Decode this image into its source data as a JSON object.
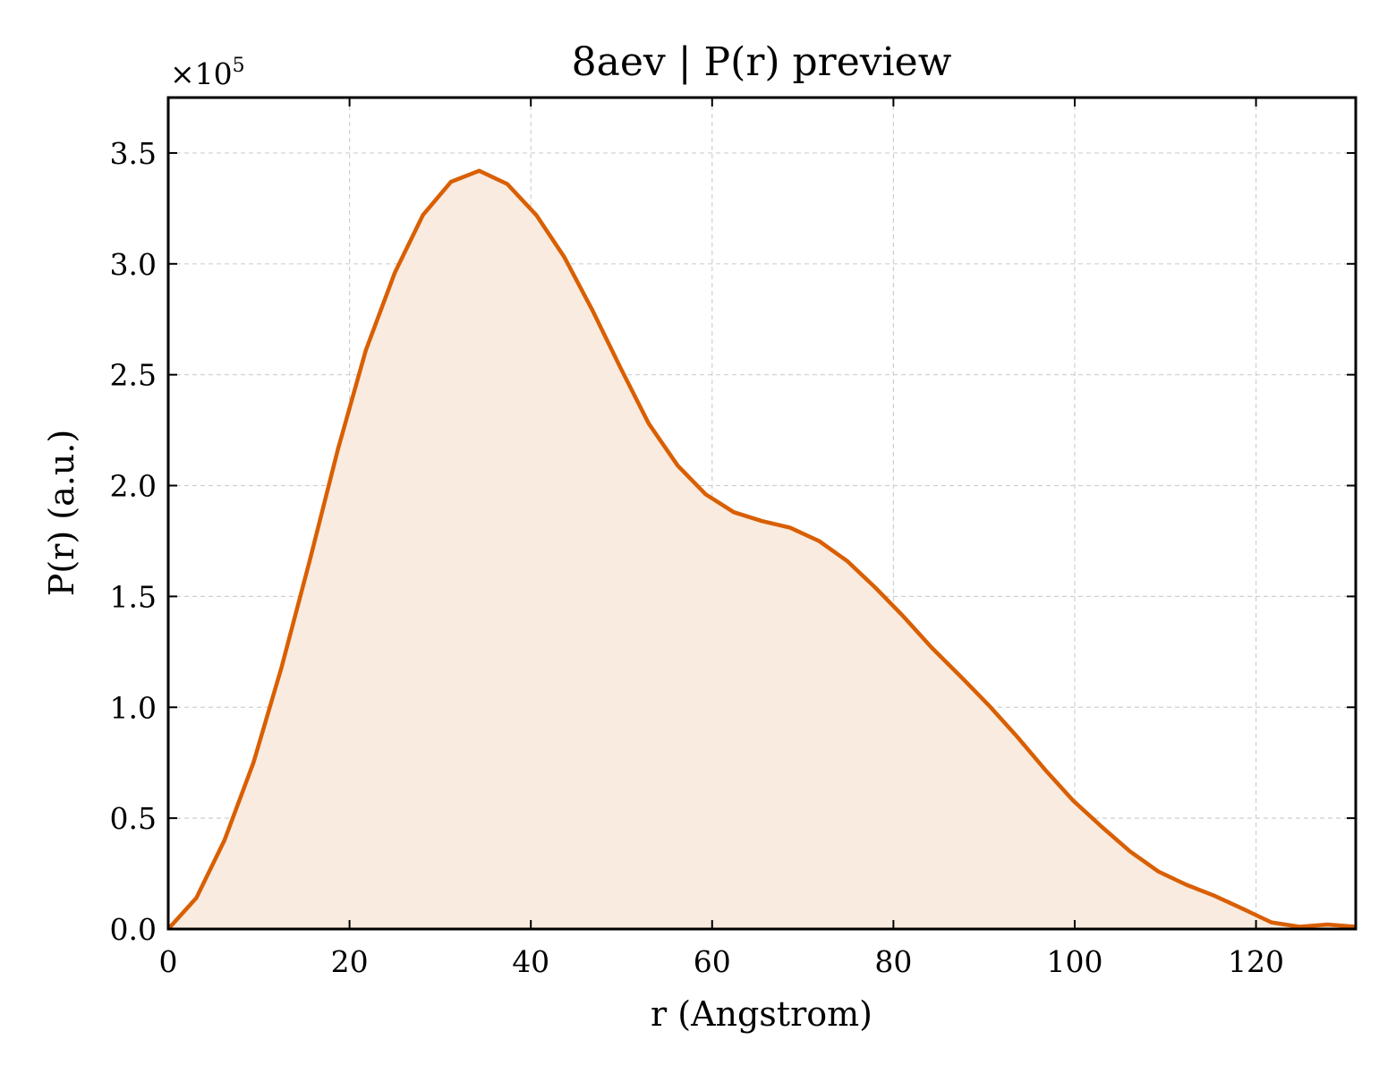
{
  "chart_data": {
    "type": "area",
    "title": "8aev | P(r) preview",
    "xlabel": "r (Angstrom)",
    "ylabel": "P(r) (a.u.)",
    "y_offset_label": "×10",
    "y_offset_exponent": "5",
    "xlim": [
      0,
      131
    ],
    "ylim": [
      0,
      3.75
    ],
    "y_multiplier": 100000,
    "grid": true,
    "legend": "none",
    "line_color": "#d95f02",
    "fill_color": "#f9ebe0",
    "x_ticks": [
      0,
      20,
      40,
      60,
      80,
      100,
      120
    ],
    "x_tick_labels": [
      "0",
      "20",
      "40",
      "60",
      "80",
      "100",
      "120"
    ],
    "y_ticks": [
      0.0,
      0.5,
      1.0,
      1.5,
      2.0,
      2.5,
      3.0,
      3.5
    ],
    "y_tick_labels": [
      "0.0",
      "0.5",
      "1.0",
      "1.5",
      "2.0",
      "2.5",
      "3.0",
      "3.5"
    ],
    "series": [
      {
        "x": [
          0,
          3.1,
          6.2,
          9.4,
          12.5,
          15.6,
          18.7,
          21.8,
          25.0,
          28.1,
          31.2,
          34.3,
          37.4,
          40.6,
          43.7,
          46.8,
          49.9,
          53.0,
          56.2,
          59.3,
          62.4,
          65.5,
          68.6,
          71.8,
          74.9,
          78.0,
          81.1,
          84.2,
          87.4,
          90.5,
          93.6,
          96.7,
          99.8,
          103.0,
          106.1,
          109.2,
          112.3,
          115.4,
          118.6,
          121.7,
          124.8,
          127.9,
          131.0
        ],
        "values": [
          0.0,
          0.14,
          0.4,
          0.75,
          1.18,
          1.66,
          2.16,
          2.61,
          2.96,
          3.22,
          3.37,
          3.42,
          3.36,
          3.22,
          3.03,
          2.79,
          2.53,
          2.28,
          2.09,
          1.96,
          1.88,
          1.84,
          1.81,
          1.75,
          1.66,
          1.54,
          1.41,
          1.27,
          1.14,
          1.01,
          0.87,
          0.72,
          0.58,
          0.46,
          0.35,
          0.26,
          0.2,
          0.15,
          0.09,
          0.03,
          0.01,
          0.02,
          0.01
        ]
      }
    ]
  }
}
